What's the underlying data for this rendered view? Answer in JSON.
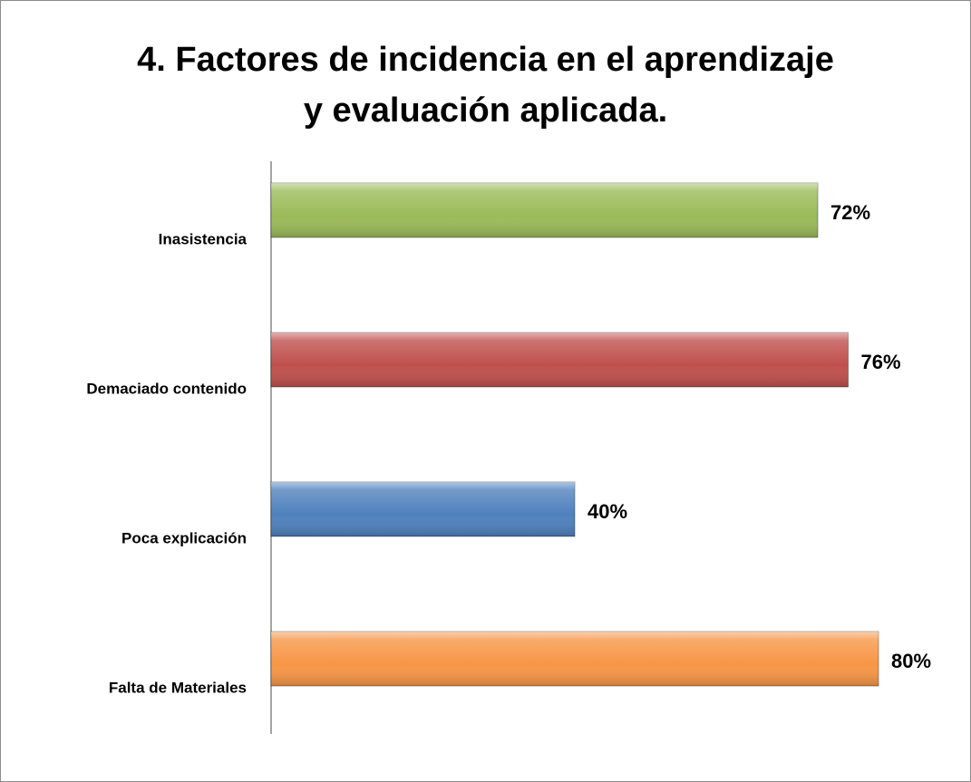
{
  "chart_data": {
    "type": "bar",
    "orientation": "horizontal",
    "title": "4. Factores de incidencia en el aprendizaje\ny evaluación aplicada.",
    "categories": [
      "Inasistencia",
      "Demaciado contenido",
      "Poca explicación",
      "Falta de Materiales"
    ],
    "values": [
      72,
      76,
      40,
      80
    ],
    "value_labels": [
      "72%",
      "76%",
      "40%",
      "80%"
    ],
    "colors": [
      "#9bbb59",
      "#c0504d",
      "#4f81bd",
      "#f79646"
    ]
  }
}
